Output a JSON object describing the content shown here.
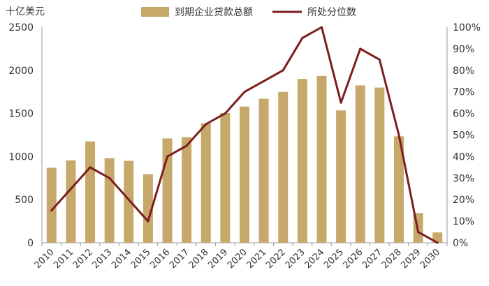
{
  "chart_data": {
    "type": "bar+line",
    "y_left_unit": "十亿美元",
    "categories": [
      "2010",
      "2011",
      "2012",
      "2013",
      "2014",
      "2015",
      "2016",
      "2017",
      "2018",
      "2019",
      "2020",
      "2021",
      "2022",
      "2023",
      "2024",
      "2025",
      "2026",
      "2027",
      "2028",
      "2029",
      "2030"
    ],
    "series": [
      {
        "name": "到期企业贷款总额",
        "type": "bar",
        "axis": "left",
        "color": "#C6A96A",
        "values": [
          870,
          955,
          1175,
          980,
          950,
          795,
          1210,
          1225,
          1385,
          1505,
          1580,
          1670,
          1750,
          1900,
          1935,
          1535,
          1825,
          1800,
          1235,
          345,
          120
        ]
      },
      {
        "name": "所处分位数",
        "type": "line",
        "axis": "right",
        "color": "#7B1E1E",
        "values": [
          15,
          25,
          35,
          30,
          20,
          10,
          40,
          45,
          55,
          60,
          70,
          75,
          80,
          95,
          100,
          65,
          90,
          85,
          50,
          5,
          0
        ]
      }
    ],
    "y_left": {
      "min": 0,
      "max": 2500,
      "ticks": [
        0,
        500,
        1000,
        1500,
        2000,
        2500
      ],
      "tick_labels": [
        "0",
        "500",
        "1000",
        "1500",
        "2000",
        "2500"
      ]
    },
    "y_right": {
      "min": 0,
      "max": 100,
      "ticks": [
        0,
        10,
        20,
        30,
        40,
        50,
        60,
        70,
        80,
        90,
        100
      ],
      "tick_labels": [
        "0%",
        "10%",
        "20%",
        "30%",
        "40%",
        "50%",
        "60%",
        "70%",
        "80%",
        "90%",
        "100%"
      ]
    },
    "grid": false,
    "legend": "top-center"
  }
}
